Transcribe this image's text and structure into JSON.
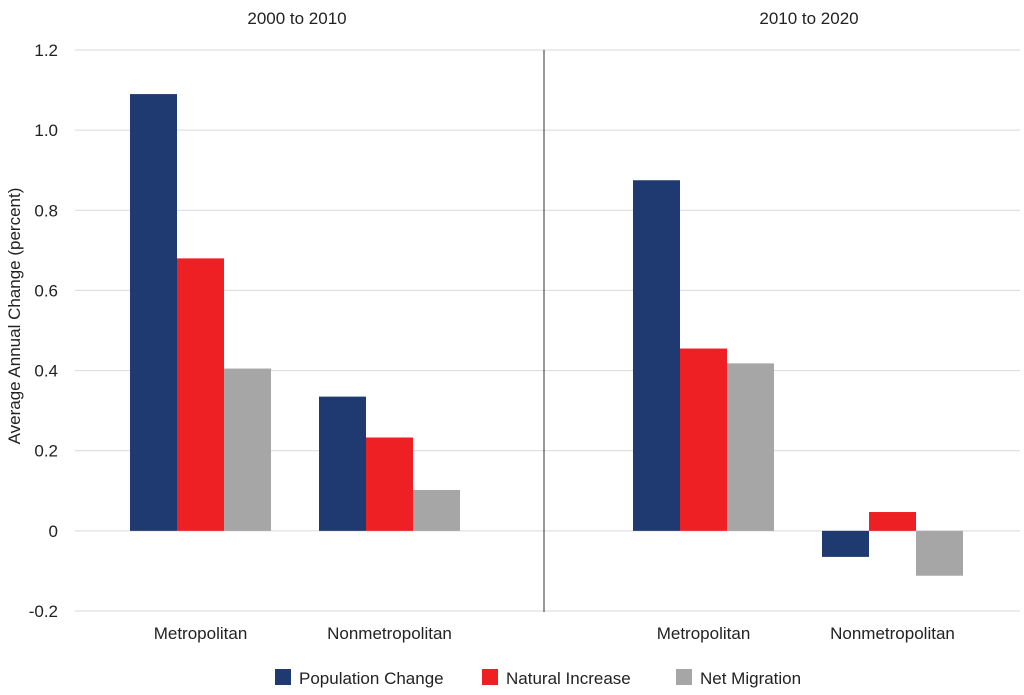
{
  "chart_data": {
    "type": "bar",
    "ylabel": "Average Annual Change (percent)",
    "ylim": [
      -0.2,
      1.2
    ],
    "yticks": [
      {
        "value": 1.2,
        "label": "1.2"
      },
      {
        "value": 1.0,
        "label": "1.0"
      },
      {
        "value": 0.8,
        "label": "0.8"
      },
      {
        "value": 0.6,
        "label": "0.6"
      },
      {
        "value": 0.4,
        "label": "0.4"
      },
      {
        "value": 0.2,
        "label": "0.2"
      },
      {
        "value": 0,
        "label": "0"
      },
      {
        "value": -0.2,
        "label": "-0.2"
      }
    ],
    "grid": true,
    "legend_position": "bottom",
    "series": [
      {
        "name": "Population Change",
        "color": "#1f3a70"
      },
      {
        "name": "Natural Increase",
        "color": "#ee2024"
      },
      {
        "name": "Net Migration",
        "color": "#a6a6a6"
      }
    ],
    "panels": [
      {
        "title": "2000 to 2010",
        "categories": [
          {
            "label": "Metropolitan",
            "values": [
              1.09,
              0.68,
              0.405
            ]
          },
          {
            "label": "Nonmetropolitan",
            "values": [
              0.335,
              0.233,
              0.102
            ]
          }
        ]
      },
      {
        "title": "2010 to 2020",
        "categories": [
          {
            "label": "Metropolitan",
            "values": [
              0.875,
              0.455,
              0.418
            ]
          },
          {
            "label": "Nonmetropolitan",
            "values": [
              -0.065,
              0.047,
              -0.112
            ]
          }
        ]
      }
    ]
  }
}
